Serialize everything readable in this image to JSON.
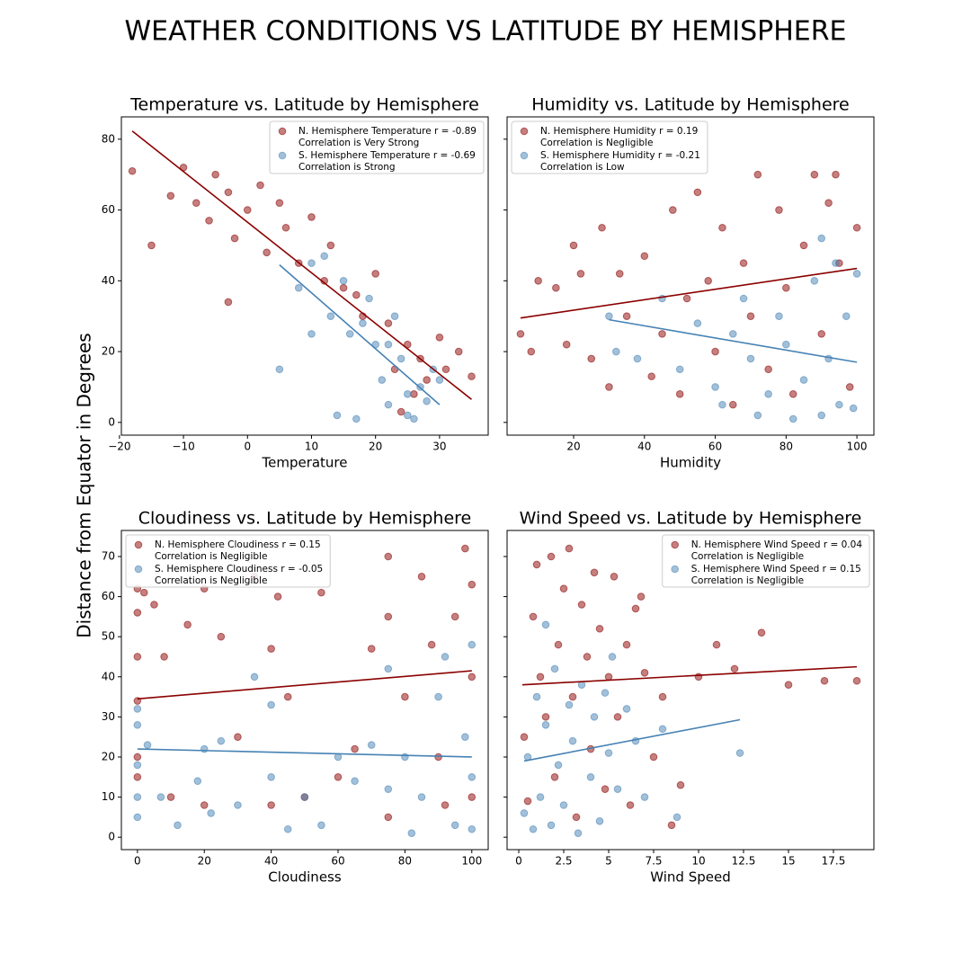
{
  "title": "WEATHER CONDITIONS VS LATITUDE BY HEMISPHERE",
  "y_label": "Distance from Equator in Degrees",
  "chart_data": [
    {
      "type": "scatter",
      "title": "Temperature vs. Latitude by Hemisphere",
      "x_label": "Temperature",
      "xlim": [
        -19.7,
        37.6
      ],
      "ylim": [
        -3.6,
        86.3
      ],
      "xticks": [
        {
          "value": -20,
          "label": "−20"
        },
        {
          "value": -10,
          "label": "−10"
        },
        0,
        10,
        20,
        30
      ],
      "yticks": [
        0,
        20,
        40,
        60,
        80
      ],
      "ytick_labels": true,
      "legend": "upper right",
      "series": [
        {
          "name": "N. Hemisphere Temperature r = -0.89",
          "note": "Correlation is Very Strong",
          "color": "#8b0000",
          "x": [
            -18,
            -15,
            -12,
            -10,
            -8,
            -6,
            -5,
            -3,
            -2,
            0,
            2,
            3,
            5,
            6,
            8,
            10,
            12,
            13,
            15,
            17,
            18,
            20,
            22,
            23,
            25,
            26,
            27,
            28,
            30,
            31,
            33,
            35,
            -3,
            24
          ],
          "values": [
            71,
            50,
            64,
            72,
            62,
            57,
            70,
            65,
            52,
            60,
            67,
            48,
            62,
            55,
            45,
            58,
            40,
            50,
            38,
            36,
            30,
            42,
            28,
            15,
            22,
            8,
            18,
            12,
            24,
            15,
            20,
            13,
            34,
            3
          ]
        },
        {
          "name": "S. Hemisphere Temperature r = -0.69",
          "note": "Correlation is Strong",
          "color": "#4682b4",
          "x": [
            5,
            8,
            10,
            12,
            13,
            15,
            16,
            18,
            19,
            20,
            21,
            22,
            23,
            24,
            25,
            25,
            26,
            27,
            28,
            29,
            30,
            14,
            17,
            10,
            22
          ],
          "values": [
            15,
            38,
            45,
            47,
            30,
            40,
            25,
            28,
            35,
            22,
            12,
            5,
            30,
            18,
            8,
            2,
            1,
            10,
            6,
            15,
            12,
            2,
            1,
            25,
            22
          ]
        }
      ],
      "fit_lines": [
        {
          "color": "#8b0000",
          "x": [
            -18,
            35
          ],
          "values": [
            82.3,
            6.5
          ]
        },
        {
          "color": "#4682b4",
          "x": [
            5,
            30
          ],
          "values": [
            44.5,
            5
          ]
        }
      ]
    },
    {
      "type": "scatter",
      "title": "Humidity vs. Latitude by Hemisphere",
      "x_label": "Humidity",
      "xlim": [
        1.2,
        104.8
      ],
      "ylim": [
        -3.6,
        86.3
      ],
      "xticks": [
        20,
        40,
        60,
        80,
        100
      ],
      "yticks": [
        0,
        20,
        40,
        60,
        80
      ],
      "ytick_labels": false,
      "legend": "upper left",
      "series": [
        {
          "name": "N. Hemisphere Humidity r = 0.19",
          "note": "Correlation is Negligible",
          "color": "#8b0000",
          "x": [
            5,
            8,
            10,
            15,
            18,
            20,
            22,
            25,
            28,
            30,
            33,
            35,
            40,
            42,
            45,
            48,
            50,
            52,
            55,
            58,
            60,
            62,
            65,
            68,
            70,
            72,
            75,
            78,
            80,
            82,
            85,
            88,
            90,
            92,
            95,
            98,
            100,
            94
          ],
          "values": [
            25,
            20,
            40,
            38,
            22,
            50,
            42,
            18,
            55,
            10,
            42,
            30,
            47,
            13,
            25,
            60,
            8,
            35,
            65,
            40,
            20,
            55,
            5,
            45,
            30,
            70,
            15,
            60,
            38,
            8,
            50,
            70,
            25,
            62,
            45,
            10,
            55,
            70
          ]
        },
        {
          "name": "S. Hemisphere Humidity r = -0.21",
          "note": "Correlation is Low",
          "color": "#4682b4",
          "x": [
            30,
            32,
            38,
            45,
            50,
            55,
            60,
            62,
            65,
            68,
            70,
            72,
            75,
            78,
            80,
            82,
            85,
            88,
            90,
            92,
            94,
            95,
            97,
            99,
            100,
            90
          ],
          "values": [
            30,
            20,
            18,
            35,
            15,
            28,
            10,
            5,
            25,
            35,
            18,
            2,
            8,
            30,
            22,
            1,
            12,
            40,
            2,
            18,
            45,
            5,
            30,
            4,
            42,
            52
          ]
        }
      ],
      "fit_lines": [
        {
          "color": "#8b0000",
          "x": [
            5,
            100
          ],
          "values": [
            29.5,
            43.5
          ]
        },
        {
          "color": "#4682b4",
          "x": [
            30,
            100
          ],
          "values": [
            29,
            17
          ]
        }
      ]
    },
    {
      "type": "scatter",
      "title": "Cloudiness vs. Latitude by Hemisphere",
      "x_label": "Cloudiness",
      "xlim": [
        -4.8,
        104.9
      ],
      "ylim": [
        -3.1,
        76.5
      ],
      "xticks": [
        0,
        20,
        40,
        60,
        80,
        100
      ],
      "yticks": [
        0,
        10,
        20,
        30,
        40,
        50,
        60,
        70
      ],
      "ytick_labels": true,
      "legend": "upper left",
      "series": [
        {
          "name": "N. Hemisphere Cloudiness r = 0.15",
          "note": "Correlation is Negligible",
          "color": "#8b0000",
          "x": [
            0,
            0,
            0,
            0,
            0,
            0,
            2,
            5,
            8,
            10,
            15,
            20,
            20,
            25,
            30,
            35,
            40,
            40,
            42,
            45,
            50,
            55,
            60,
            65,
            70,
            75,
            75,
            75,
            80,
            85,
            88,
            90,
            92,
            95,
            98,
            100,
            100,
            100
          ],
          "values": [
            34,
            45,
            56,
            62,
            20,
            15,
            61,
            58,
            45,
            10,
            53,
            62,
            8,
            50,
            25,
            65,
            47,
            8,
            60,
            35,
            10,
            61,
            15,
            22,
            47,
            70,
            55,
            5,
            35,
            65,
            48,
            20,
            8,
            55,
            72,
            63,
            40,
            10
          ]
        },
        {
          "name": "S. Hemisphere Cloudiness r = -0.05",
          "note": "Correlation is Negligible",
          "color": "#4682b4",
          "x": [
            0,
            0,
            0,
            0,
            0,
            3,
            7,
            12,
            18,
            20,
            22,
            25,
            30,
            35,
            40,
            40,
            45,
            50,
            55,
            60,
            65,
            70,
            75,
            75,
            80,
            82,
            85,
            90,
            92,
            95,
            98,
            100,
            100,
            100
          ],
          "values": [
            5,
            18,
            28,
            32,
            10,
            23,
            10,
            3,
            14,
            22,
            6,
            24,
            8,
            40,
            15,
            33,
            2,
            10,
            3,
            20,
            14,
            23,
            42,
            12,
            20,
            1,
            10,
            35,
            45,
            3,
            25,
            48,
            2,
            15
          ]
        }
      ],
      "fit_lines": [
        {
          "color": "#8b0000",
          "x": [
            0,
            100
          ],
          "values": [
            34.5,
            41.5
          ]
        },
        {
          "color": "#4682b4",
          "x": [
            0,
            100
          ],
          "values": [
            22,
            20
          ]
        }
      ]
    },
    {
      "type": "scatter",
      "title": "Wind Speed vs. Latitude by Hemisphere",
      "x_label": "Wind Speed",
      "xlim": [
        -0.65,
        19.75
      ],
      "ylim": [
        -3.1,
        76.5
      ],
      "xticks": [
        0.0,
        2.5,
        5.0,
        7.5,
        10.0,
        12.5,
        15.0,
        17.5
      ],
      "yticks": [
        0,
        10,
        20,
        30,
        40,
        50,
        60,
        70
      ],
      "ytick_labels": false,
      "legend": "upper right",
      "series": [
        {
          "name": "N. Hemisphere Wind Speed r = 0.04",
          "note": "Correlation is Negligible",
          "color": "#8b0000",
          "x": [
            0.3,
            0.5,
            0.8,
            1,
            1.2,
            1.5,
            1.8,
            2,
            2.2,
            2.5,
            2.8,
            3,
            3.2,
            3.5,
            3.8,
            4,
            4.2,
            4.5,
            4.8,
            5,
            5.3,
            5.5,
            6,
            6.2,
            6.5,
            7,
            7.5,
            8,
            8.5,
            9,
            10,
            11,
            12,
            13.5,
            15,
            17,
            18.8,
            6.8
          ],
          "values": [
            25,
            9,
            55,
            68,
            40,
            30,
            70,
            15,
            48,
            62,
            72,
            35,
            5,
            58,
            45,
            22,
            66,
            52,
            12,
            40,
            65,
            30,
            48,
            8,
            57,
            41,
            20,
            35,
            3,
            13,
            40,
            48,
            42,
            51,
            38,
            39,
            39,
            60
          ]
        },
        {
          "name": "S. Hemisphere Wind Speed r = 0.15",
          "note": "Correlation is Negligible",
          "color": "#4682b4",
          "x": [
            0.3,
            0.5,
            0.8,
            1,
            1.2,
            1.5,
            1.8,
            2,
            2.2,
            2.5,
            2.8,
            3,
            3.3,
            3.5,
            4,
            4.2,
            4.5,
            4.8,
            5,
            5.5,
            6,
            6.5,
            7,
            8,
            8.8,
            12.3,
            5.2,
            1.5
          ],
          "values": [
            6,
            20,
            2,
            35,
            10,
            28,
            3,
            42,
            18,
            8,
            33,
            24,
            1,
            38,
            15,
            30,
            4,
            36,
            21,
            12,
            32,
            24,
            10,
            27,
            5,
            21,
            45,
            53
          ]
        }
      ],
      "fit_lines": [
        {
          "color": "#8b0000",
          "x": [
            0.2,
            18.8
          ],
          "values": [
            38,
            42.5
          ]
        },
        {
          "color": "#4682b4",
          "x": [
            0.3,
            12.3
          ],
          "values": [
            19,
            29.3
          ]
        }
      ]
    }
  ]
}
